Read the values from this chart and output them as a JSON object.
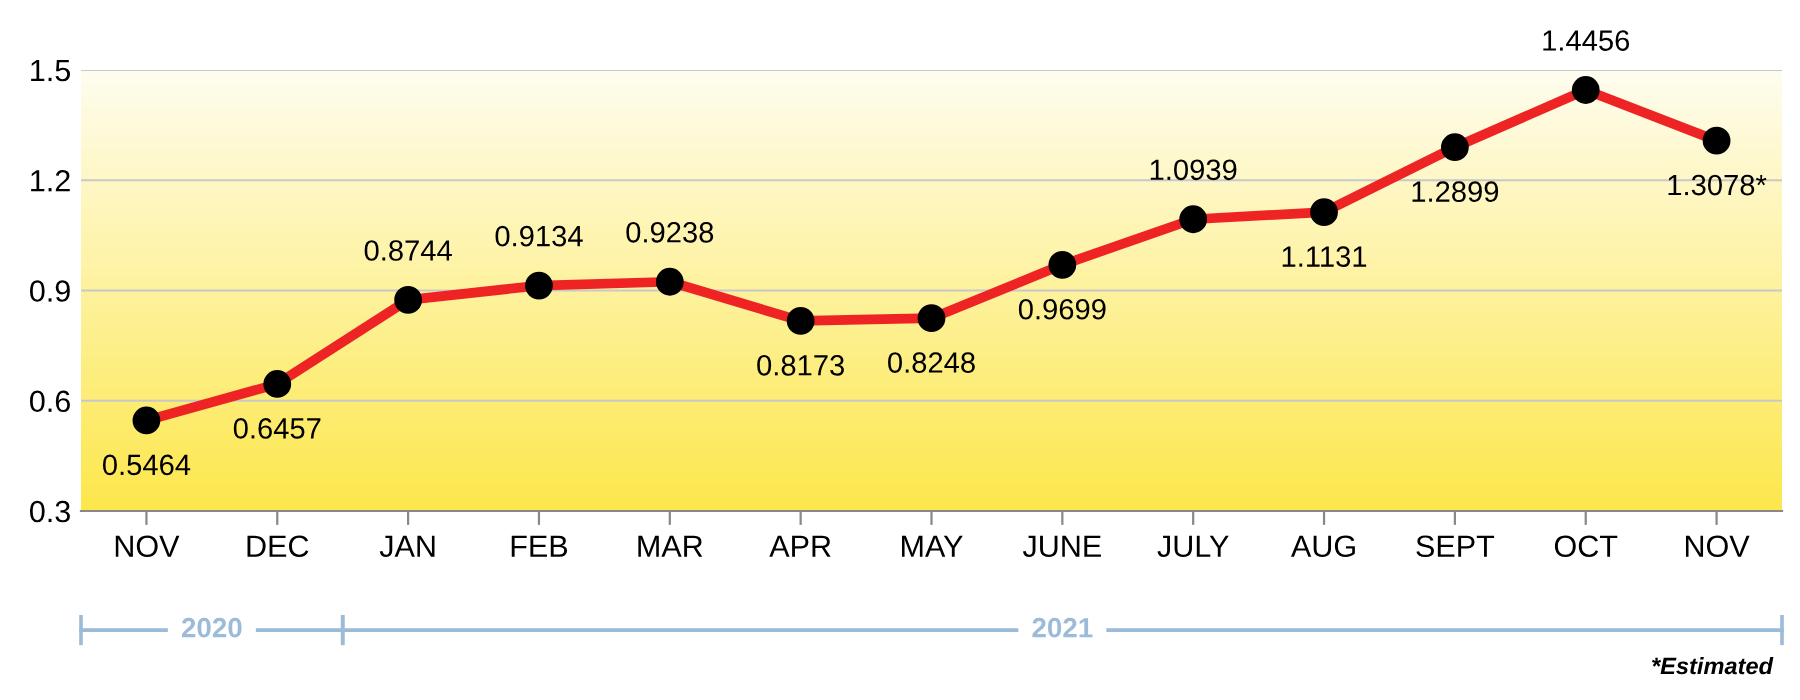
{
  "chart_data": {
    "type": "line",
    "categories": [
      "NOV",
      "DEC",
      "JAN",
      "FEB",
      "MAR",
      "APR",
      "MAY",
      "JUNE",
      "JULY",
      "AUG",
      "SEPT",
      "OCT",
      "NOV"
    ],
    "series": [
      {
        "color": "#ee2424",
        "values": [
          0.5464,
          0.6457,
          0.8744,
          0.9134,
          0.9238,
          0.8173,
          0.8248,
          0.9699,
          1.0939,
          1.1131,
          1.2899,
          1.4456,
          1.3078
        ],
        "value_labels": [
          "0.5464",
          "0.6457",
          "0.8744",
          "0.9134",
          "0.9238",
          "0.8173",
          "0.8248",
          "0.9699",
          "1.0939",
          "1.1131",
          "1.2899",
          "1.4456",
          "1.3078*"
        ]
      }
    ],
    "ylim": [
      0.3,
      1.5
    ],
    "yticks": [
      0.3,
      0.6,
      0.9,
      1.2,
      1.5
    ],
    "grid": "y",
    "marker": "circle",
    "line_style": "solid",
    "legend": false,
    "annotations": [
      "2020",
      "2021",
      "*Estimated"
    ]
  }
}
